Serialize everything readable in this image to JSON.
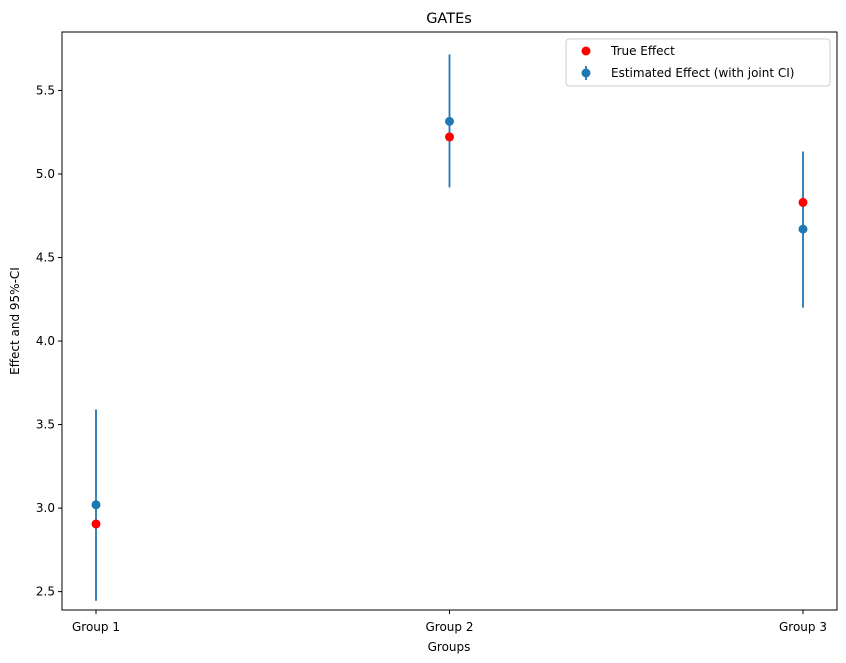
{
  "chart_data": {
    "type": "scatter",
    "title": "GATEs",
    "xlabel": "Groups",
    "ylabel": "Effect and 95%-CI",
    "categories": [
      "Group 1",
      "Group 2",
      "Group 3"
    ],
    "ylim": [
      2.39,
      5.85
    ],
    "yticks": [
      2.5,
      3.0,
      3.5,
      4.0,
      4.5,
      5.0,
      5.5
    ],
    "ytick_labels": [
      "2.5",
      "3.0",
      "3.5",
      "4.0",
      "4.5",
      "5.0",
      "5.5"
    ],
    "grid": false,
    "legend_position": "top-right",
    "series": [
      {
        "name": "True Effect",
        "kind": "scatter",
        "color": "#ff0000",
        "values": [
          2.905,
          5.222,
          4.83
        ]
      },
      {
        "name": "Estimated Effect (with joint CI)",
        "kind": "errorbar",
        "color": "#1f77b4",
        "values": [
          3.02,
          5.315,
          4.67
        ],
        "lower": [
          2.445,
          4.92,
          4.2
        ],
        "upper": [
          3.59,
          5.715,
          5.135
        ]
      }
    ]
  }
}
